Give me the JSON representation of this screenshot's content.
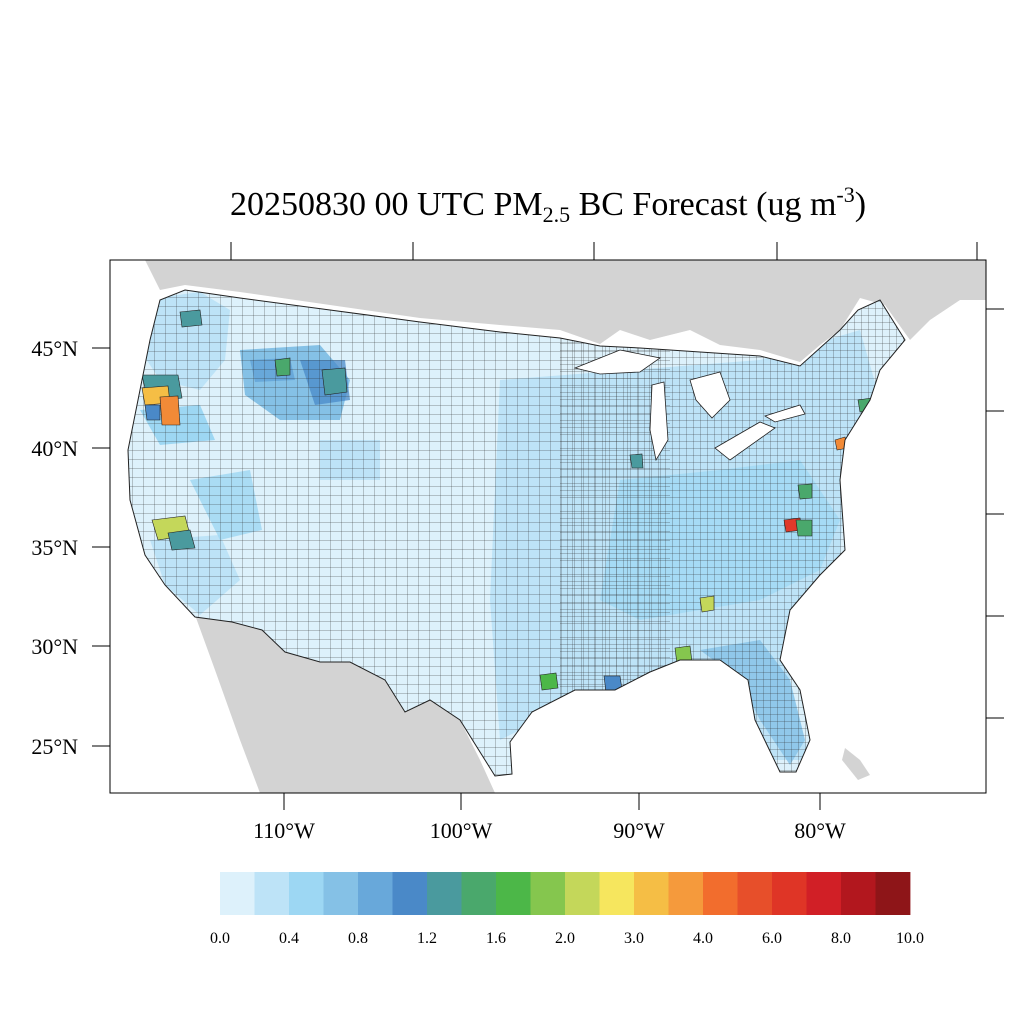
{
  "title": {
    "prefix": "20250830 00 UTC PM",
    "subscript": "2.5",
    "middle": " BC Forecast (ug m",
    "superscript": "-3",
    "suffix": ")"
  },
  "map": {
    "region": "Contiguous United States",
    "variable": "PM2.5 BC",
    "units": "ug m-3",
    "lat_ticks": [
      "45°N",
      "40°N",
      "35°N",
      "30°N",
      "25°N"
    ],
    "lon_ticks": [
      "110°W",
      "100°W",
      "90°W",
      "80°W"
    ],
    "hotspots": [
      {
        "area": "southern Oregon / northern California",
        "value_range": "3.0-4.0",
        "color": "#f5be45"
      },
      {
        "area": "southern Oregon / northern California",
        "value_range": "4.0-6.0",
        "color": "#f28a37"
      },
      {
        "area": "southern California",
        "value_range": "2.0-3.0",
        "color": "#c4d75a"
      },
      {
        "area": "central North Carolina",
        "value_range": "6.0-8.0",
        "color": "#e0392a"
      },
      {
        "area": "New Jersey / New York",
        "value_range": "4.0-6.0",
        "color": "#f28a37"
      }
    ]
  },
  "colorbar": {
    "colors": [
      "#ddf1fb",
      "#bde3f7",
      "#9dd7f3",
      "#85c1e6",
      "#68a8da",
      "#4a89c8",
      "#4a9a9e",
      "#4aa86c",
      "#4cb748",
      "#85c64e",
      "#c4d75a",
      "#f6e65e",
      "#f5be45",
      "#f59a3c",
      "#f26d2d",
      "#e74f2a",
      "#df3526",
      "#d11f26",
      "#b2171e",
      "#8e1518"
    ],
    "labels": [
      "0.0",
      "0.4",
      "0.8",
      "1.2",
      "1.6",
      "2.0",
      "3.0",
      "4.0",
      "6.0",
      "8.0",
      "10.0"
    ]
  }
}
